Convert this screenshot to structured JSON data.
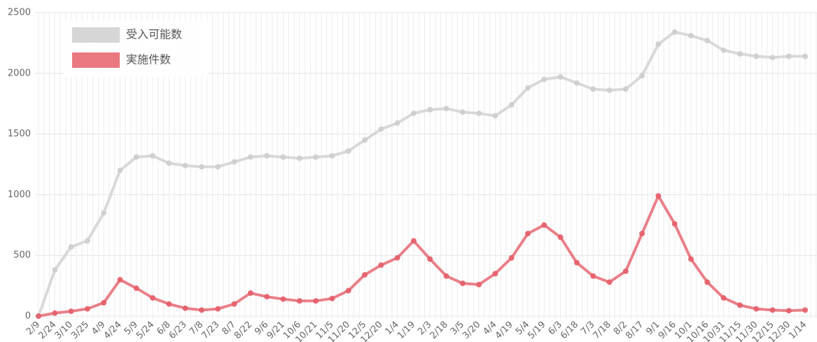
{
  "chart_data": {
    "type": "line",
    "categories": [
      "2/9",
      "2/24",
      "3/10",
      "3/25",
      "4/9",
      "4/24",
      "5/9",
      "5/24",
      "6/8",
      "6/23",
      "7/8",
      "7/23",
      "8/7",
      "8/22",
      "9/6",
      "9/21",
      "10/6",
      "10/21",
      "11/5",
      "11/20",
      "12/5",
      "12/20",
      "1/4",
      "1/19",
      "2/3",
      "2/18",
      "3/5",
      "3/20",
      "4/4",
      "4/19",
      "5/4",
      "5/19",
      "6/3",
      "6/18",
      "7/3",
      "7/18",
      "8/2",
      "8/17",
      "9/1",
      "9/16",
      "10/1",
      "10/16",
      "10/31",
      "11/15",
      "11/30",
      "12/15",
      "12/30",
      "1/14"
    ],
    "series": [
      {
        "name": "受入可能数",
        "color": "#cfcfcf",
        "values": [
          0,
          380,
          570,
          620,
          850,
          1200,
          1310,
          1320,
          1260,
          1240,
          1230,
          1230,
          1270,
          1310,
          1320,
          1310,
          1300,
          1310,
          1320,
          1360,
          1450,
          1540,
          1590,
          1670,
          1700,
          1710,
          1680,
          1670,
          1650,
          1740,
          1880,
          1950,
          1970,
          1920,
          1870,
          1860,
          1870,
          1980,
          2240,
          2340,
          2310,
          2270,
          2190,
          2160,
          2140,
          2130,
          2140,
          2140
        ]
      },
      {
        "name": "実施件数",
        "color": "#e5606b",
        "values": [
          0,
          25,
          40,
          60,
          110,
          300,
          230,
          150,
          100,
          65,
          50,
          60,
          100,
          190,
          160,
          140,
          125,
          125,
          145,
          210,
          340,
          420,
          480,
          620,
          470,
          330,
          270,
          260,
          350,
          480,
          680,
          750,
          650,
          440,
          330,
          280,
          370,
          680,
          990,
          760,
          470,
          280,
          150,
          90,
          60,
          50,
          45,
          50
        ]
      }
    ],
    "ylim": [
      0,
      2500
    ],
    "yticks": [
      0,
      500,
      1000,
      1500,
      2000,
      2500
    ],
    "grid": true,
    "legend": "top-left"
  }
}
